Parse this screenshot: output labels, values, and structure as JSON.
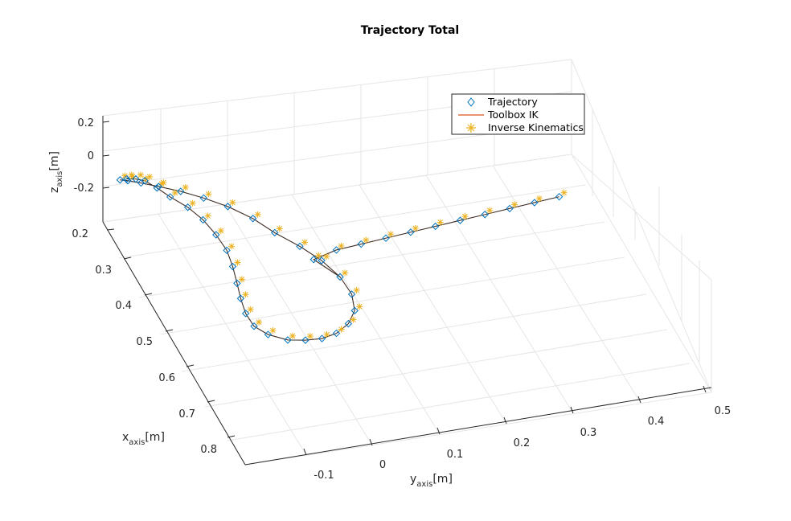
{
  "chart_data": {
    "type": "line3d",
    "title": "Trajectory Total",
    "axes": {
      "x": {
        "label_base": "x",
        "label_sub": "axis",
        "label_unit": "[m]",
        "ticks": [
          "0.2",
          "0.3",
          "0.4",
          "0.5",
          "0.6",
          "0.7",
          "0.8"
        ],
        "range": [
          0.2,
          0.8
        ]
      },
      "y": {
        "label_base": "y",
        "label_sub": "axis",
        "label_unit": "[m]",
        "ticks": [
          "-0.1",
          "0",
          "0.1",
          "0.2",
          "0.3",
          "0.4",
          "0.5"
        ],
        "range": [
          -0.15,
          0.5
        ]
      },
      "z": {
        "label_base": "z",
        "label_sub": "axis",
        "label_unit": "[m]",
        "ticks": [
          "0.2",
          "0",
          "-0.2"
        ],
        "range": [
          -0.3,
          0.2
        ]
      }
    },
    "grid": true,
    "legend": {
      "placement": "top-right",
      "entries": [
        {
          "name": "Trajectory",
          "marker": "diamond",
          "color": "#0072bd"
        },
        {
          "name": "Toolbox IK",
          "marker": "line",
          "color": "#d95319"
        },
        {
          "name": "Inverse Kinematics",
          "marker": "asterisk",
          "color": "#edb120"
        }
      ]
    },
    "series": [
      {
        "name": "Trajectory",
        "color": "#0072bd",
        "x": [
          0.25,
          0.245,
          0.24,
          0.25,
          0.265,
          0.285,
          0.31,
          0.34,
          0.375,
          0.41,
          0.45,
          0.49,
          0.53,
          0.57,
          0.605,
          0.635,
          0.655,
          0.67,
          0.675,
          0.668,
          0.65,
          0.62,
          0.58,
          0.54,
          0.5,
          0.46,
          0.42,
          0.38,
          0.345,
          0.315,
          0.29,
          0.27,
          0.255,
          0.25,
          0.47,
          0.45,
          0.44,
          0.43,
          0.42,
          0.41,
          0.4,
          0.39,
          0.38,
          0.37,
          0.36
        ],
        "y": [
          -0.13,
          -0.115,
          -0.1,
          -0.085,
          -0.07,
          -0.05,
          -0.035,
          -0.025,
          -0.02,
          -0.022,
          -0.028,
          -0.035,
          -0.04,
          -0.04,
          -0.03,
          -0.01,
          0.01,
          0.03,
          0.05,
          0.07,
          0.085,
          0.09,
          0.085,
          0.07,
          0.05,
          0.025,
          0.005,
          -0.02,
          -0.045,
          -0.07,
          -0.095,
          -0.115,
          -0.13,
          -0.14,
          0.08,
          0.12,
          0.16,
          0.2,
          0.24,
          0.28,
          0.32,
          0.36,
          0.4,
          0.44,
          0.48
        ],
        "z": [
          0.05,
          0.03,
          0.0,
          -0.03,
          -0.06,
          -0.09,
          -0.12,
          -0.15,
          -0.17,
          -0.19,
          -0.2,
          -0.2,
          -0.2,
          -0.19,
          -0.17,
          -0.15,
          -0.12,
          -0.09,
          -0.06,
          -0.03,
          0.0,
          0.03,
          0.05,
          0.07,
          0.08,
          0.09,
          0.1,
          0.1,
          0.09,
          0.08,
          0.07,
          0.06,
          0.05,
          0.05,
          -0.08,
          -0.09,
          -0.1,
          -0.11,
          -0.12,
          -0.13,
          -0.14,
          -0.15,
          -0.16,
          -0.17,
          -0.18
        ]
      }
    ]
  }
}
